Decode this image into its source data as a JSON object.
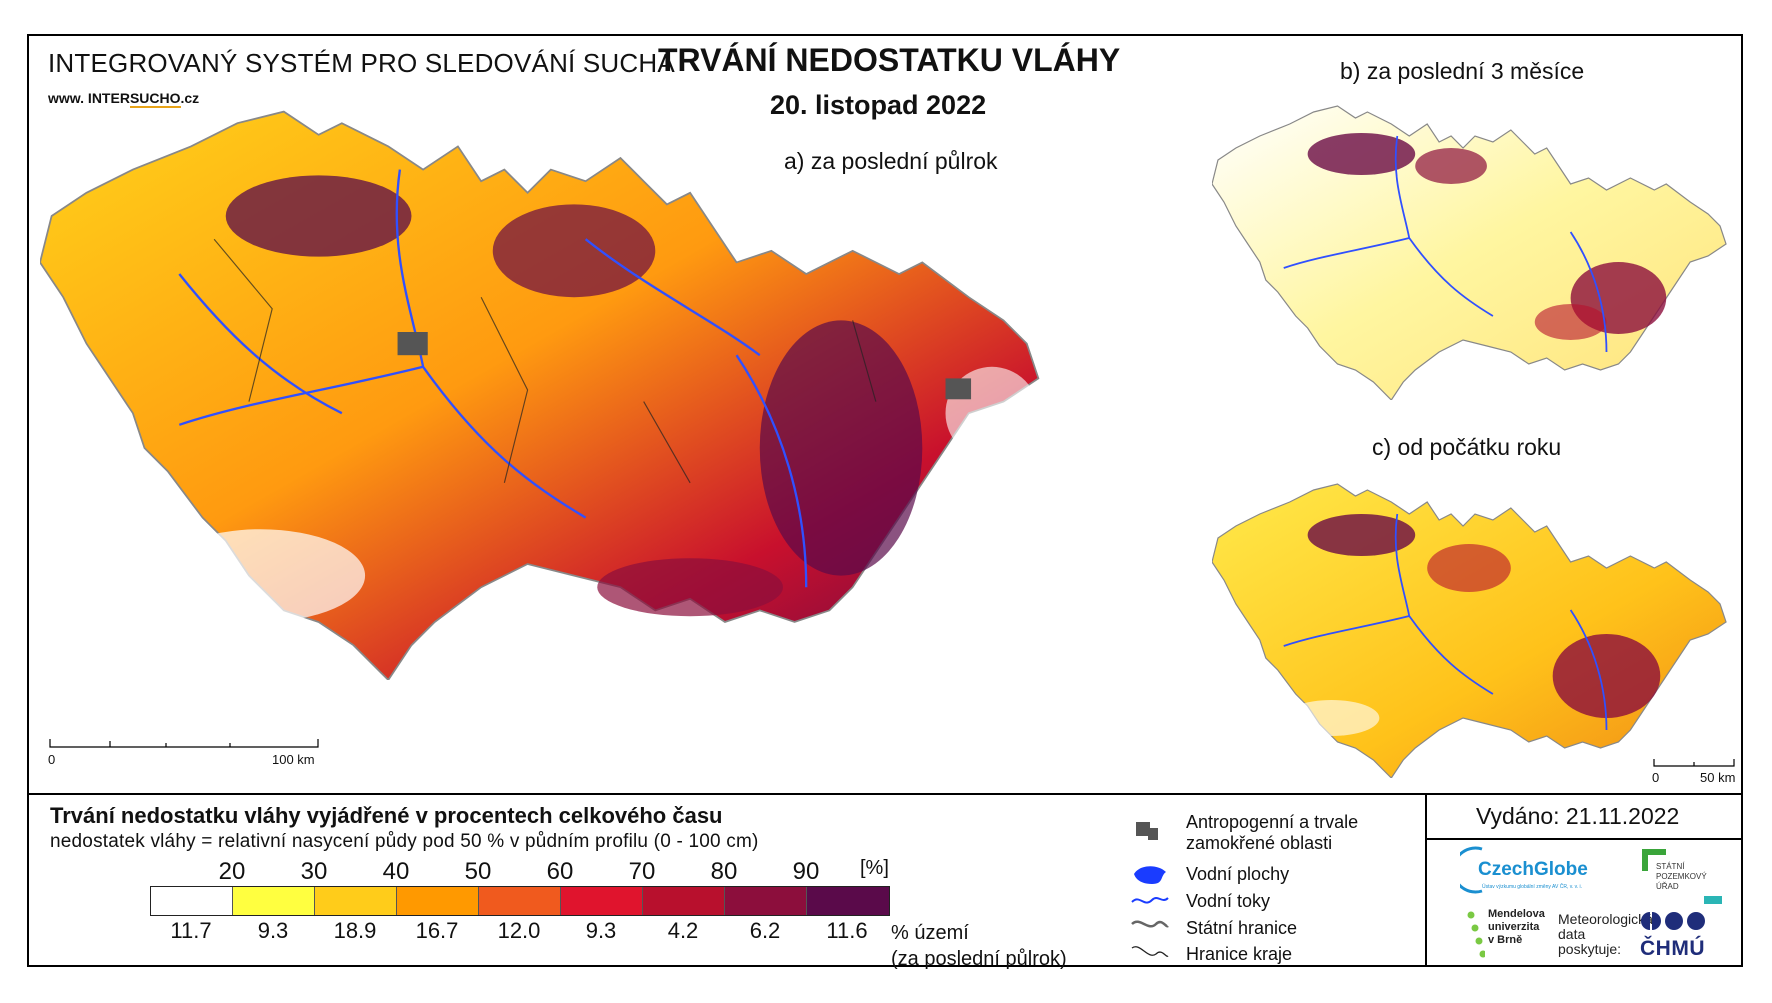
{
  "header": {
    "system_title": "INTEGROVANÝ SYSTÉM PRO SLEDOVÁNÍ SUCHA",
    "website_prefix": "www. INTER",
    "website_highlight": "SUCHO",
    "website_suffix": ".cz",
    "main_title": "TRVÁNÍ NEDOSTATKU VLÁHY",
    "date": "20. listopad 2022"
  },
  "maps": {
    "a_title": "a) za poslední půlrok",
    "b_title": "b) za poslední 3 měsíce",
    "c_title": "c) od počátku roku",
    "scale_main": {
      "start": "0",
      "end": "100 km"
    },
    "scale_small": {
      "start": "0",
      "end": "50 km"
    }
  },
  "legend": {
    "title": "Trvání nedostatku vláhy vyjádřené v procentech celkového času",
    "subtitle": "nedostatek vláhy = relativní nasycení půdy pod 50 % v půdním profilu (0 - 100 cm)",
    "unit": "[%]",
    "thresholds": [
      "20",
      "30",
      "40",
      "50",
      "60",
      "70",
      "80",
      "90"
    ],
    "colors": [
      "#ffffff",
      "#ffff40",
      "#ffcc1a",
      "#ff9900",
      "#f05a1e",
      "#e0142d",
      "#b8102d",
      "#8c0e3c",
      "#5a0a4a"
    ],
    "territory_share": [
      "11.7",
      "9.3",
      "18.9",
      "16.7",
      "12.0",
      "9.3",
      "4.2",
      "6.2",
      "11.6"
    ],
    "territory_label_1": "% území",
    "territory_label_2": "(za poslední půlrok)"
  },
  "symbols": {
    "urban": "Antropogenní a trvale",
    "urban_2": "zamokřené oblasti",
    "water_bodies": "Vodní plochy",
    "rivers": "Vodní toky",
    "state_border": "Státní hranice",
    "region_border": "Hranice kraje"
  },
  "footer": {
    "issued": "Vydáno: 21.11.2022",
    "czechglobe": "CzechGlobe",
    "czechglobe_sub": "Ústav výzkumu globální změny AV ČR, v. v. i.",
    "spu_1": "STÁTNÍ",
    "spu_2": "POZEMKOVÝ",
    "spu_3": "ÚŘAD",
    "mendel_1": "Mendelova",
    "mendel_2": "univerzita",
    "mendel_3": "v Brně",
    "meteo_1": "Meteorologická",
    "meteo_2": "data",
    "meteo_3": "poskytuje:",
    "chmu": "ČHMÚ"
  }
}
